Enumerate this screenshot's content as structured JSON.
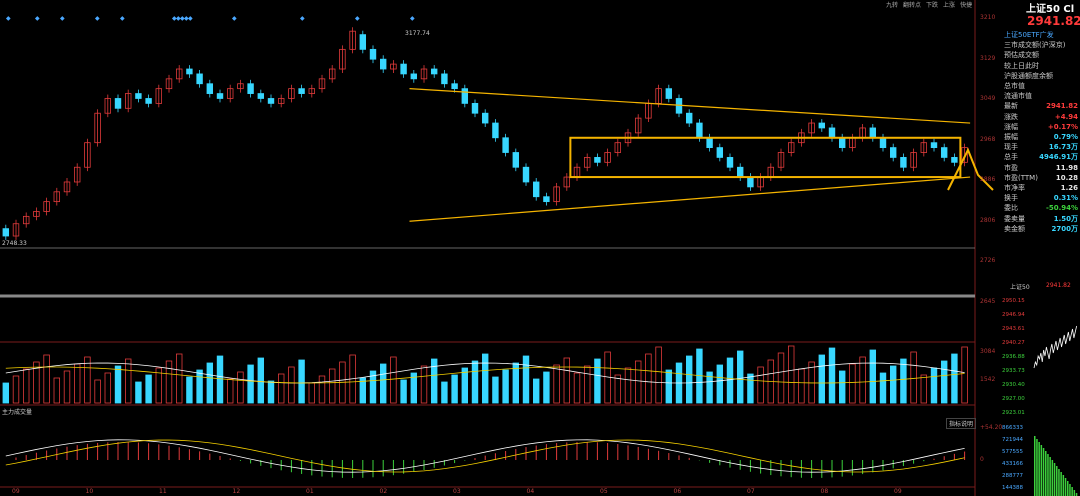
{
  "toolbar": {
    "items": [
      "九转",
      "翻转点",
      "下跌",
      "上涨",
      "快捷"
    ]
  },
  "index_name": "上证50 Cl",
  "index_price": "2941.82",
  "quote": {
    "rows": [
      {
        "label": "上证50ETF广发",
        "value": "",
        "color": "blue"
      },
      {
        "label": "三市成交额(沪深京)",
        "value": "",
        "color": "g"
      },
      {
        "label": "预估成交额",
        "value": "",
        "color": "g"
      },
      {
        "label": "较上日此时",
        "value": "",
        "color": "g"
      },
      {
        "label": "沪股通额度余额",
        "value": "",
        "color": "g"
      },
      {
        "label": "总市值",
        "value": "",
        "color": "g"
      },
      {
        "label": "流通市值",
        "value": "",
        "color": "g"
      },
      {
        "label": "最新",
        "value": "2941.82",
        "color": "red"
      },
      {
        "label": "涨跌",
        "value": "+4.94",
        "color": "red"
      },
      {
        "label": "涨幅",
        "value": "+0.17%",
        "color": "red"
      },
      {
        "label": "振幅",
        "value": "0.79%",
        "color": "cyan"
      },
      {
        "label": "现手",
        "value": "16.73万",
        "color": "cyan"
      },
      {
        "label": "总手",
        "value": "4946.91万",
        "color": "cyan"
      },
      {
        "label": "市盈",
        "value": "11.98",
        "color": "white"
      },
      {
        "label": "市盈(TTM)",
        "value": "10.28",
        "color": "white"
      },
      {
        "label": "市净率",
        "value": "1.26",
        "color": "white"
      },
      {
        "label": "换手",
        "value": "0.31%",
        "color": "cyan"
      },
      {
        "label": "委比",
        "value": "-50.94%",
        "color": "green"
      },
      {
        "label": "委卖量",
        "value": "1.50万",
        "color": "cyan"
      },
      {
        "label": "卖金额",
        "value": "2700万",
        "color": "cyan"
      }
    ]
  },
  "mini": {
    "title": "上证50",
    "price": "2941.82",
    "yticks": [
      "2950.15",
      "2946.94",
      "2943.61",
      "2940.27",
      "2936.88",
      "2933.73",
      "2930.40",
      "2927.00",
      "2923.01"
    ],
    "vol_ticks": [
      "866333",
      "721944",
      "577555",
      "433166",
      "288777",
      "144388"
    ],
    "points": [
      2936,
      2938,
      2937,
      2940,
      2939,
      2941,
      2938,
      2942,
      2940,
      2943,
      2941,
      2939,
      2942,
      2944,
      2941,
      2943,
      2945,
      2942,
      2944,
      2946,
      2943,
      2945,
      2947,
      2944,
      2946,
      2948,
      2945,
      2947,
      2949,
      2946,
      2948,
      2950
    ]
  },
  "chart_data": {
    "type": "candlestick",
    "period": "daily",
    "months": [
      "09",
      "10",
      "11",
      "12",
      "01",
      "02",
      "03",
      "04",
      "05",
      "06",
      "07",
      "08",
      "09"
    ],
    "price_ylim": [
      2646,
      3212
    ],
    "price_yticks": [
      "3210",
      "3129",
      "3049",
      "2968",
      "2886",
      "2806",
      "2726",
      "2645"
    ],
    "high_label": "3177.74",
    "low_label": "2748.33",
    "candles": [
      {
        "o": 2775,
        "c": 2760
      },
      {
        "o": 2760,
        "c": 2785
      },
      {
        "o": 2785,
        "c": 2800
      },
      {
        "o": 2800,
        "c": 2810
      },
      {
        "o": 2810,
        "c": 2830
      },
      {
        "o": 2830,
        "c": 2850
      },
      {
        "o": 2850,
        "c": 2870
      },
      {
        "o": 2870,
        "c": 2900
      },
      {
        "o": 2900,
        "c": 2950
      },
      {
        "o": 2950,
        "c": 3010
      },
      {
        "o": 3010,
        "c": 3040
      },
      {
        "o": 3040,
        "c": 3020
      },
      {
        "o": 3020,
        "c": 3050
      },
      {
        "o": 3050,
        "c": 3040
      },
      {
        "o": 3040,
        "c": 3030
      },
      {
        "o": 3030,
        "c": 3060
      },
      {
        "o": 3060,
        "c": 3080
      },
      {
        "o": 3080,
        "c": 3100
      },
      {
        "o": 3100,
        "c": 3090
      },
      {
        "o": 3090,
        "c": 3070
      },
      {
        "o": 3070,
        "c": 3050
      },
      {
        "o": 3050,
        "c": 3040
      },
      {
        "o": 3040,
        "c": 3060
      },
      {
        "o": 3060,
        "c": 3070
      },
      {
        "o": 3070,
        "c": 3050
      },
      {
        "o": 3050,
        "c": 3040
      },
      {
        "o": 3040,
        "c": 3030
      },
      {
        "o": 3030,
        "c": 3040
      },
      {
        "o": 3040,
        "c": 3060
      },
      {
        "o": 3060,
        "c": 3050
      },
      {
        "o": 3050,
        "c": 3060
      },
      {
        "o": 3060,
        "c": 3080
      },
      {
        "o": 3080,
        "c": 3100
      },
      {
        "o": 3100,
        "c": 3140
      },
      {
        "o": 3140,
        "c": 3177
      },
      {
        "o": 3170,
        "c": 3140
      },
      {
        "o": 3140,
        "c": 3120
      },
      {
        "o": 3120,
        "c": 3100
      },
      {
        "o": 3100,
        "c": 3110
      },
      {
        "o": 3110,
        "c": 3090
      },
      {
        "o": 3090,
        "c": 3080
      },
      {
        "o": 3080,
        "c": 3100
      },
      {
        "o": 3100,
        "c": 3090
      },
      {
        "o": 3090,
        "c": 3070
      },
      {
        "o": 3070,
        "c": 3060
      },
      {
        "o": 3060,
        "c": 3030
      },
      {
        "o": 3030,
        "c": 3010
      },
      {
        "o": 3010,
        "c": 2990
      },
      {
        "o": 2990,
        "c": 2960
      },
      {
        "o": 2960,
        "c": 2930
      },
      {
        "o": 2930,
        "c": 2900
      },
      {
        "o": 2900,
        "c": 2870
      },
      {
        "o": 2870,
        "c": 2840
      },
      {
        "o": 2840,
        "c": 2830
      },
      {
        "o": 2830,
        "c": 2860
      },
      {
        "o": 2860,
        "c": 2880
      },
      {
        "o": 2880,
        "c": 2900
      },
      {
        "o": 2900,
        "c": 2920
      },
      {
        "o": 2920,
        "c": 2910
      },
      {
        "o": 2910,
        "c": 2930
      },
      {
        "o": 2930,
        "c": 2950
      },
      {
        "o": 2950,
        "c": 2970
      },
      {
        "o": 2970,
        "c": 3000
      },
      {
        "o": 3000,
        "c": 3030
      },
      {
        "o": 3030,
        "c": 3060
      },
      {
        "o": 3060,
        "c": 3040
      },
      {
        "o": 3040,
        "c": 3010
      },
      {
        "o": 3010,
        "c": 2990
      },
      {
        "o": 2990,
        "c": 2960
      },
      {
        "o": 2960,
        "c": 2940
      },
      {
        "o": 2940,
        "c": 2920
      },
      {
        "o": 2920,
        "c": 2900
      },
      {
        "o": 2900,
        "c": 2880
      },
      {
        "o": 2880,
        "c": 2860
      },
      {
        "o": 2860,
        "c": 2880
      },
      {
        "o": 2880,
        "c": 2900
      },
      {
        "o": 2900,
        "c": 2930
      },
      {
        "o": 2930,
        "c": 2950
      },
      {
        "o": 2950,
        "c": 2970
      },
      {
        "o": 2970,
        "c": 2990
      },
      {
        "o": 2990,
        "c": 2980
      },
      {
        "o": 2980,
        "c": 2960
      },
      {
        "o": 2960,
        "c": 2940
      },
      {
        "o": 2940,
        "c": 2960
      },
      {
        "o": 2960,
        "c": 2980
      },
      {
        "o": 2980,
        "c": 2960
      },
      {
        "o": 2960,
        "c": 2940
      },
      {
        "o": 2940,
        "c": 2920
      },
      {
        "o": 2920,
        "c": 2900
      },
      {
        "o": 2900,
        "c": 2930
      },
      {
        "o": 2930,
        "c": 2950
      },
      {
        "o": 2950,
        "c": 2940
      },
      {
        "o": 2940,
        "c": 2920
      },
      {
        "o": 2920,
        "c": 2910
      },
      {
        "o": 2910,
        "c": 2940
      }
    ],
    "trend_lines": [
      {
        "x1": 0.42,
        "y1": 3060,
        "x2": 0.995,
        "y2": 2990
      },
      {
        "x1": 0.42,
        "y1": 2790,
        "x2": 0.995,
        "y2": 2880
      }
    ],
    "box": {
      "x1": 0.585,
      "y1": 2960,
      "x2": 0.985,
      "y2": 2880
    },
    "volume_ticks": [
      "3084",
      "1542"
    ],
    "indicator_label": "主力成交量",
    "indicator_button": "指标说明",
    "indicator_ticks": [
      "+54.20",
      "0"
    ]
  }
}
